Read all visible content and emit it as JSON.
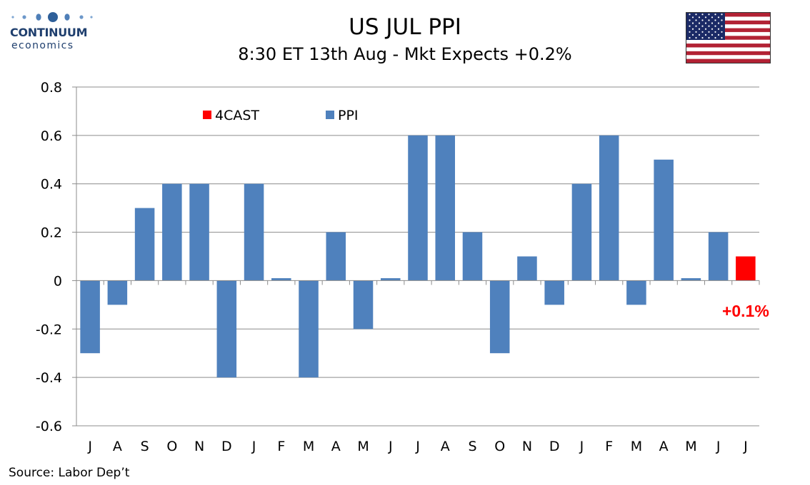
{
  "branding": {
    "logo_word": "CONTINUUM",
    "logo_sub": "economics",
    "logo_icon": "dots-logo-icon",
    "flag_icon": "us-flag-icon"
  },
  "header": {
    "title": "US JUL PPI",
    "subtitle": "8:30 ET 13th Aug - Mkt Expects +0.2%"
  },
  "footer": {
    "source": "Source: Labor Dep’t"
  },
  "chart_data": {
    "type": "bar",
    "categories": [
      "J",
      "A",
      "S",
      "O",
      "N",
      "D",
      "J",
      "F",
      "M",
      "A",
      "M",
      "J",
      "J",
      "A",
      "S",
      "O",
      "N",
      "D",
      "J",
      "F",
      "M",
      "A",
      "M",
      "J",
      "J"
    ],
    "series": [
      {
        "name": "PPI",
        "color": "#4f81bd",
        "values": [
          -0.3,
          -0.1,
          0.3,
          0.4,
          0.4,
          -0.4,
          0.4,
          0.01,
          -0.4,
          0.2,
          -0.2,
          0.01,
          0.6,
          0.6,
          0.2,
          -0.3,
          0.1,
          -0.1,
          0.4,
          0.6,
          -0.1,
          0.5,
          0.01,
          0.2,
          null
        ]
      },
      {
        "name": "4CAST",
        "color": "#ff0000",
        "values": [
          null,
          null,
          null,
          null,
          null,
          null,
          null,
          null,
          null,
          null,
          null,
          null,
          null,
          null,
          null,
          null,
          null,
          null,
          null,
          null,
          null,
          null,
          null,
          null,
          0.1
        ]
      }
    ],
    "ylim": [
      -0.6,
      0.8
    ],
    "yticks": [
      "0.8",
      "0.6",
      "0.4",
      "0.2",
      "0",
      "-0.2",
      "-0.4",
      "-0.6"
    ],
    "ytick_values": [
      0.8,
      0.6,
      0.4,
      0.2,
      0,
      -0.2,
      -0.4,
      -0.6
    ],
    "grid": true,
    "legend_placement": "top-left",
    "legend": [
      {
        "name": "4CAST",
        "color": "#ff0000"
      },
      {
        "name": "PPI",
        "color": "#4f81bd"
      }
    ],
    "annotation": {
      "text": "+0.1%",
      "color": "#ff0000",
      "category_index": 24
    }
  }
}
